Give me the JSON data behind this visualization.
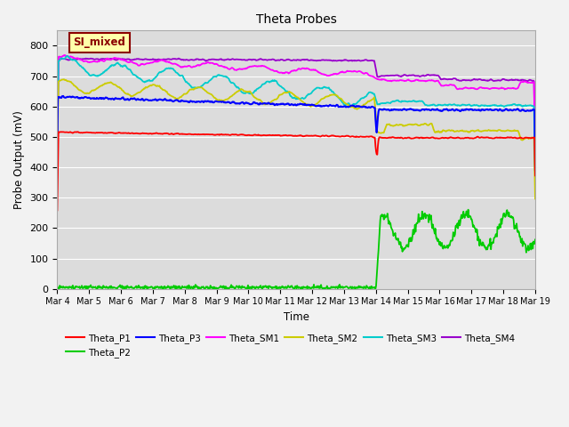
{
  "title": "Theta Probes",
  "xlabel": "Time",
  "ylabel": "Probe Output (mV)",
  "ylim": [
    0,
    850
  ],
  "background_color": "#dcdcdc",
  "annotation_label": "SI_mixed",
  "annotation_bg": "#ffffaa",
  "annotation_border": "#8b0000",
  "annotation_text_color": "#8b0000",
  "series": {
    "Theta_P1": {
      "color": "#ff0000"
    },
    "Theta_P2": {
      "color": "#00cc00"
    },
    "Theta_P3": {
      "color": "#0000ff"
    },
    "Theta_SM1": {
      "color": "#ff00ff"
    },
    "Theta_SM2": {
      "color": "#cccc00"
    },
    "Theta_SM3": {
      "color": "#00cccc"
    },
    "Theta_SM4": {
      "color": "#9900cc"
    }
  },
  "tick_labels": [
    "Mar 4",
    "Mar 5",
    "Mar 6",
    "Mar 7",
    "Mar 8",
    "Mar 9",
    "Mar 10",
    "Mar 11",
    "Mar 12",
    "Mar 13",
    "Mar 14",
    "Mar 15",
    "Mar 16",
    "Mar 17",
    "Mar 18",
    "Mar 19"
  ],
  "grid_color": "#ffffff",
  "figsize": [
    6.4,
    4.8
  ],
  "dpi": 100
}
